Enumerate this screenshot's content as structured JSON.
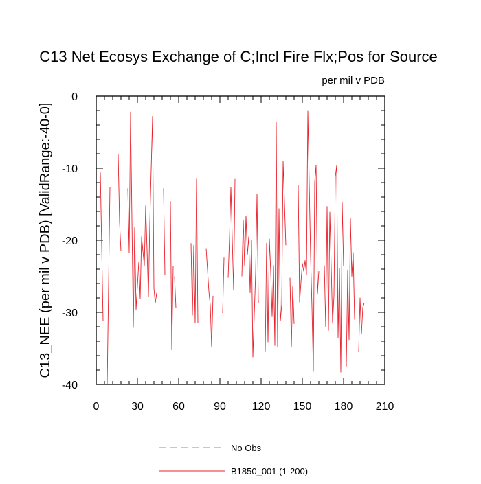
{
  "chart_data": {
    "type": "line",
    "title": "C13 Net Ecosys Exchange of C;Incl Fire Flx;Pos for Source",
    "units_label": "per mil v PDB",
    "ylabel": "C13_NEE  (per mil v PDB)  [ValidRange:-40-0]",
    "xlabel": "",
    "xlim": [
      0,
      210
    ],
    "ylim": [
      -40,
      0
    ],
    "x_ticks": [
      0,
      30,
      60,
      90,
      120,
      150,
      180,
      210
    ],
    "y_ticks": [
      0,
      -10,
      -20,
      -30,
      -40
    ],
    "grid": false,
    "legend_position": "bottom",
    "legend": [
      {
        "label": "No Obs",
        "color": "#8080ff",
        "style": "dashed"
      },
      {
        "label": "B1850_001 (1-200)",
        "color": "#e8202a",
        "style": "solid"
      }
    ],
    "series": [
      {
        "name": "B1850_001 (1-200)",
        "color": "#e8202a",
        "segments": [
          [
            [
              3,
              -10.6
            ],
            [
              5,
              -31.2
            ]
          ],
          [
            [
              8,
              -40
            ],
            [
              10,
              -12.6
            ]
          ],
          [
            [
              16,
              -8.1
            ],
            [
              17,
              -17.5
            ],
            [
              18,
              -21.5
            ]
          ],
          [
            [
              23,
              -12.8
            ],
            [
              24,
              -21.7
            ],
            [
              25,
              -2.2
            ],
            [
              27,
              -32.1
            ],
            [
              28,
              -18.2
            ],
            [
              29,
              -29.6
            ],
            [
              31,
              -23
            ],
            [
              32,
              -28.1
            ],
            [
              33,
              -19.5
            ],
            [
              35,
              -23.5
            ],
            [
              36,
              -15.2
            ],
            [
              37,
              -21.4
            ],
            [
              38,
              -27.8
            ],
            [
              39,
              -17.6
            ],
            [
              41,
              -2.8
            ],
            [
              42,
              -26.7
            ],
            [
              43,
              -28.7
            ],
            [
              44,
              -27.3
            ]
          ],
          [
            [
              49,
              -12.8
            ],
            [
              50,
              -24.8
            ]
          ],
          [
            [
              54,
              -14.6
            ],
            [
              55,
              -35.2
            ],
            [
              56,
              -23.6
            ]
          ],
          [
            [
              57,
              -25
            ],
            [
              58,
              -29.4
            ]
          ],
          [
            [
              69,
              -20.4
            ],
            [
              70,
              -30.4
            ],
            [
              71,
              -20.7
            ],
            [
              72,
              -31.5
            ],
            [
              73,
              -11.5
            ],
            [
              74,
              -31.5
            ]
          ],
          [
            [
              80,
              -21.1
            ],
            [
              82,
              -27.1
            ],
            [
              83,
              -29
            ],
            [
              84,
              -34.8
            ],
            [
              85,
              -27.7
            ]
          ],
          [
            [
              92,
              -30.1
            ],
            [
              93,
              -22.4
            ]
          ],
          [
            [
              96,
              -25.2
            ],
            [
              97,
              -19.7
            ],
            [
              98,
              -12.6
            ],
            [
              100,
              -26.9
            ],
            [
              101,
              -11.5
            ]
          ],
          [
            [
              106,
              -25
            ],
            [
              107,
              -17.2
            ],
            [
              108,
              -23.5
            ],
            [
              109,
              -16.6
            ],
            [
              110,
              -22
            ],
            [
              111,
              -19.5
            ],
            [
              112,
              -27.3
            ],
            [
              113,
              -20
            ],
            [
              114,
              -36.2
            ],
            [
              116,
              -24.6
            ],
            [
              117,
              -13.6
            ],
            [
              118,
              -28.7
            ]
          ],
          [
            [
              123,
              -35.4
            ],
            [
              124,
              -20.4
            ],
            [
              125,
              -34.1
            ],
            [
              126,
              -19.8
            ],
            [
              127,
              -24.4
            ],
            [
              128,
              -30.6
            ],
            [
              129,
              -23.5
            ],
            [
              130,
              -34.6
            ],
            [
              131,
              -3.6
            ],
            [
              132,
              -34.8
            ],
            [
              133,
              -15.6
            ],
            [
              134,
              -31.2
            ],
            [
              135,
              -28.9
            ],
            [
              136,
              -9
            ],
            [
              138,
              -20.7
            ]
          ],
          [
            [
              141,
              -25.2
            ],
            [
              142,
              -34.8
            ],
            [
              143,
              -26.4
            ],
            [
              144,
              -31.6
            ]
          ],
          [
            [
              147,
              -12.3
            ],
            [
              148,
              -28.6
            ],
            [
              149,
              -25.8
            ],
            [
              150,
              -23.2
            ],
            [
              151,
              -24.3
            ],
            [
              152,
              -22.8
            ],
            [
              153,
              -24.8
            ],
            [
              154,
              -2
            ],
            [
              156,
              -22.2
            ],
            [
              157,
              -29.3
            ],
            [
              158,
              -38.2
            ],
            [
              159,
              -11.9
            ],
            [
              160,
              -9.6
            ],
            [
              161,
              -27.4
            ],
            [
              162,
              -24.3
            ]
          ],
          [
            [
              166,
              -23.5
            ],
            [
              167,
              -32
            ],
            [
              168,
              -15.3
            ],
            [
              169,
              -32.5
            ],
            [
              170,
              -16.1
            ],
            [
              172,
              -31.5
            ],
            [
              173,
              -27.7
            ],
            [
              174,
              -11.2
            ],
            [
              175,
              -9.6
            ],
            [
              176,
              -33.5
            ],
            [
              177,
              -23.9
            ],
            [
              178,
              -38.3
            ],
            [
              179,
              -14.7
            ],
            [
              180,
              -23.6
            ]
          ],
          [
            [
              182,
              -37.5
            ],
            [
              183,
              -24.2
            ],
            [
              184,
              -33.8
            ],
            [
              185,
              -17
            ],
            [
              186,
              -25
            ],
            [
              187,
              -21.7
            ],
            [
              188,
              -31
            ]
          ],
          [
            [
              191,
              -35.5
            ],
            [
              192,
              -28
            ],
            [
              193,
              -33
            ],
            [
              194,
              -29.3
            ],
            [
              195,
              -28.7
            ]
          ]
        ]
      }
    ]
  }
}
